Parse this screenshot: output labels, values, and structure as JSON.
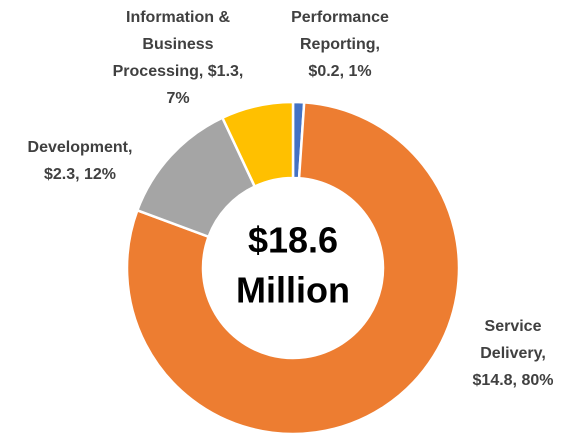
{
  "chart_data": {
    "type": "donut",
    "categories": [
      "Performance Reporting",
      "Service Delivery",
      "Development",
      "Information & Business Processing"
    ],
    "values": [
      0.2,
      14.8,
      2.3,
      1.3
    ],
    "value_labels": [
      [
        "Performance",
        "Reporting,",
        "$0.2, 1%"
      ],
      [
        "Service",
        "Delivery,",
        "$14.8, 80%"
      ],
      [
        "Development,",
        "$2.3, 12%"
      ],
      [
        "Information &",
        "Business",
        "Processing, $1.3,",
        "7%"
      ]
    ],
    "colors": [
      "#4472c4",
      "#ed7d31",
      "#a5a5a5",
      "#ffc000"
    ],
    "center_label": [
      "$18.6",
      "Million"
    ]
  }
}
